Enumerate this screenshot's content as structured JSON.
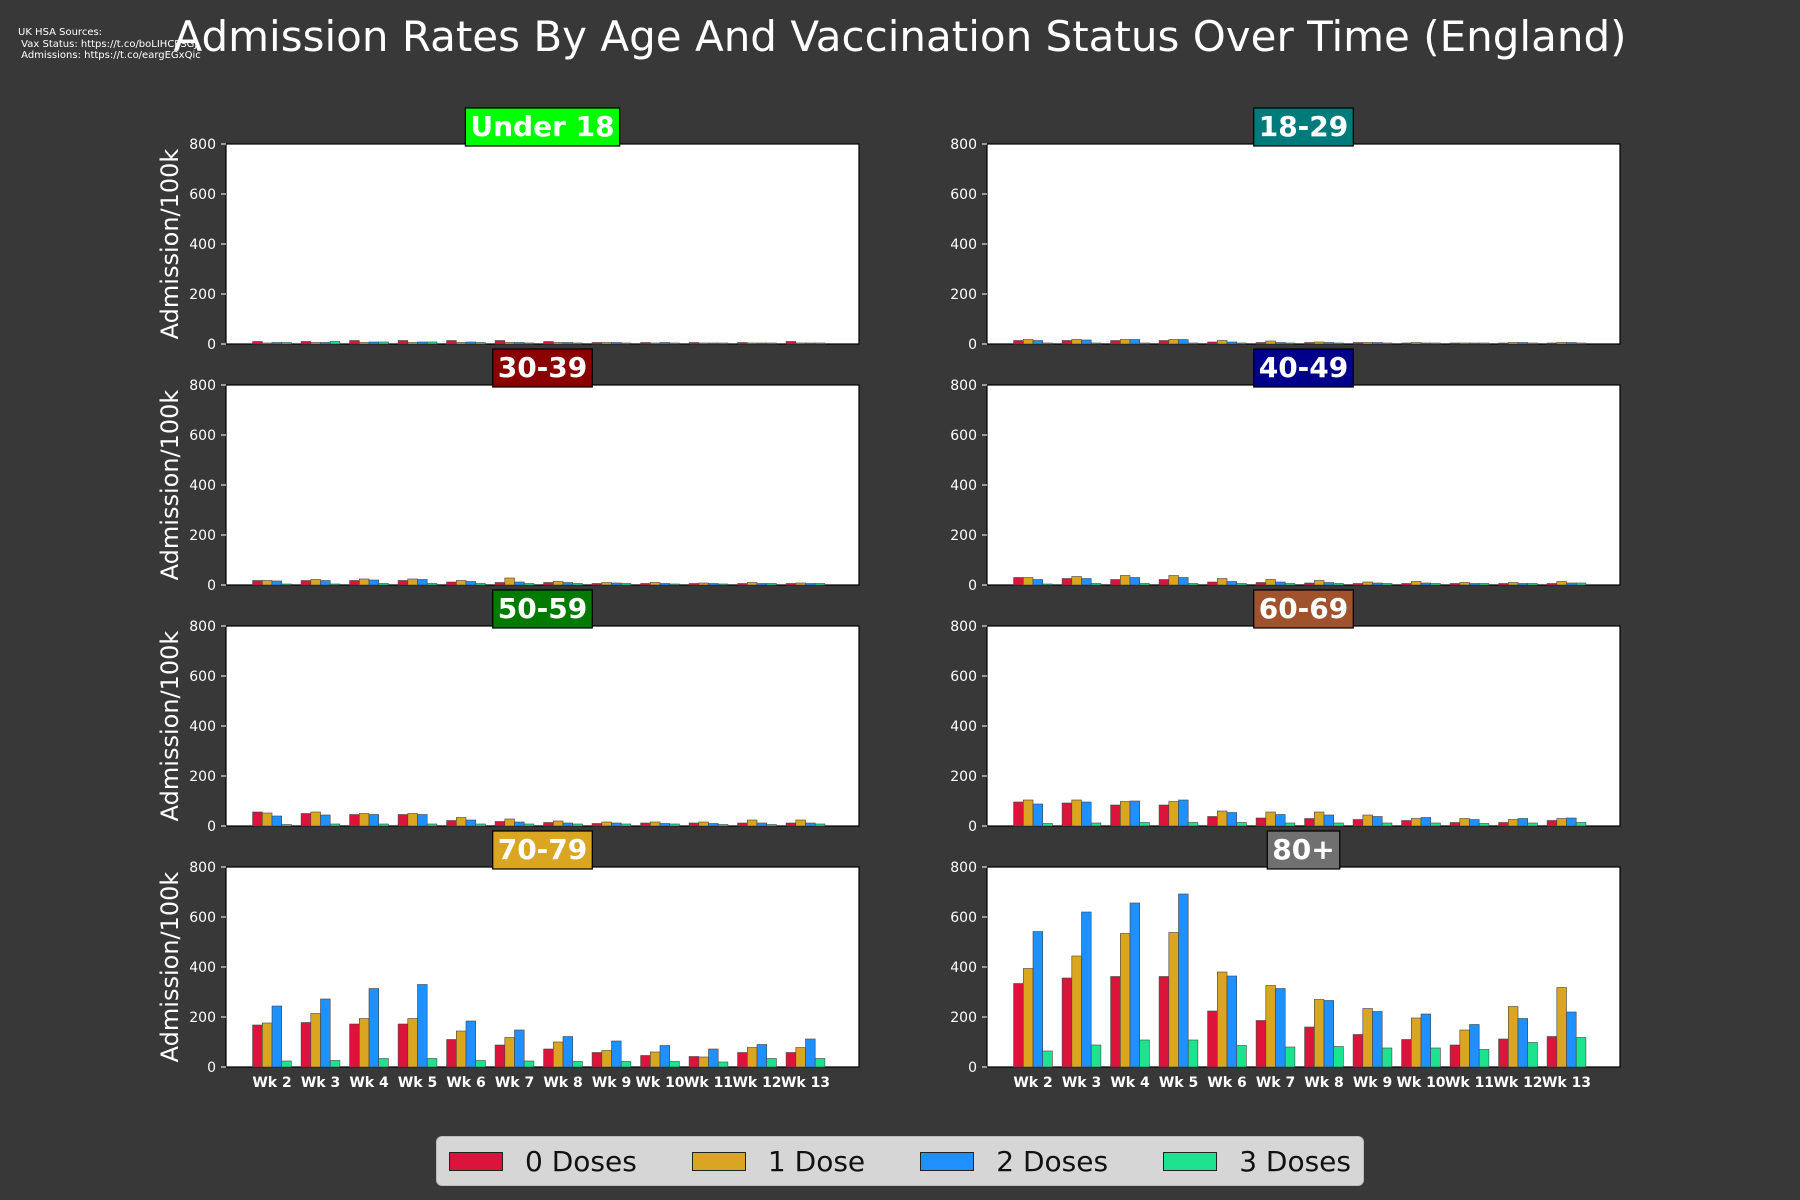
{
  "title": "Admission Rates By Age And Vaccination Status Over Time (England)",
  "sources": {
    "line1": "UK HSA Sources:",
    "line2": " Vax Status: https://t.co/boLIHCPSGJ",
    "line3": " Admissions: https://t.co/eargEGxQic"
  },
  "legend": [
    {
      "label": "0 Doses",
      "color": "#dc143c"
    },
    {
      "label": "1 Dose",
      "color": "#daa520"
    },
    {
      "label": "2 Doses",
      "color": "#1e90ff"
    },
    {
      "label": "3 Doses",
      "color": "#1de38f"
    }
  ],
  "chart_data": {
    "type": "bar",
    "ylabel": "Admission/100k",
    "ylim": [
      0,
      800
    ],
    "yticks": [
      0,
      200,
      400,
      600,
      800
    ],
    "categories": [
      "Wk 2",
      "Wk 3",
      "Wk 4",
      "Wk 5",
      "Wk 6",
      "Wk 7",
      "Wk 8",
      "Wk 9",
      "Wk 10",
      "Wk 11",
      "Wk 12",
      "Wk 13"
    ],
    "panels": [
      {
        "title": "Under 18",
        "title_bg": "#00ff00",
        "title_color": "#ffffff",
        "series": [
          {
            "name": "0 Doses",
            "values": [
              10,
              10,
              14,
              14,
              14,
              14,
              10,
              6,
              6,
              6,
              6,
              10
            ]
          },
          {
            "name": "1 Dose",
            "values": [
              4,
              6,
              6,
              6,
              6,
              6,
              6,
              6,
              4,
              4,
              4,
              4
            ]
          },
          {
            "name": "2 Doses",
            "values": [
              6,
              6,
              8,
              8,
              8,
              6,
              6,
              6,
              6,
              4,
              4,
              4
            ]
          },
          {
            "name": "3 Doses",
            "values": [
              6,
              10,
              8,
              8,
              6,
              4,
              4,
              4,
              4,
              4,
              4,
              4
            ]
          }
        ]
      },
      {
        "title": "18-29",
        "title_bg": "#007b7b",
        "title_color": "#ffffff",
        "series": [
          {
            "name": "0 Doses",
            "values": [
              14,
              14,
              14,
              14,
              8,
              6,
              6,
              6,
              4,
              4,
              4,
              4
            ]
          },
          {
            "name": "1 Dose",
            "values": [
              18,
              18,
              18,
              18,
              14,
              12,
              8,
              6,
              6,
              4,
              6,
              6
            ]
          },
          {
            "name": "2 Doses",
            "values": [
              14,
              16,
              18,
              18,
              8,
              6,
              6,
              6,
              4,
              4,
              6,
              6
            ]
          },
          {
            "name": "3 Doses",
            "values": [
              4,
              4,
              4,
              4,
              4,
              4,
              4,
              4,
              4,
              4,
              4,
              4
            ]
          }
        ]
      },
      {
        "title": "30-39",
        "title_bg": "#8b0000",
        "title_color": "#ffffff",
        "series": [
          {
            "name": "0 Doses",
            "values": [
              18,
              18,
              18,
              18,
              12,
              10,
              10,
              6,
              6,
              6,
              6,
              6
            ]
          },
          {
            "name": "1 Dose",
            "values": [
              18,
              22,
              24,
              24,
              18,
              28,
              14,
              10,
              10,
              8,
              10,
              8
            ]
          },
          {
            "name": "2 Doses",
            "values": [
              16,
              18,
              20,
              22,
              14,
              12,
              10,
              8,
              6,
              6,
              6,
              6
            ]
          },
          {
            "name": "3 Doses",
            "values": [
              4,
              4,
              6,
              6,
              6,
              6,
              6,
              6,
              4,
              4,
              6,
              6
            ]
          }
        ]
      },
      {
        "title": "40-49",
        "title_bg": "#00008b",
        "title_color": "#ffffff",
        "series": [
          {
            "name": "0 Doses",
            "values": [
              30,
              26,
              22,
              22,
              12,
              10,
              8,
              6,
              6,
              6,
              6,
              6
            ]
          },
          {
            "name": "1 Dose",
            "values": [
              30,
              34,
              38,
              38,
              26,
              22,
              18,
              12,
              14,
              10,
              10,
              14
            ]
          },
          {
            "name": "2 Doses",
            "values": [
              22,
              26,
              30,
              30,
              14,
              12,
              10,
              8,
              8,
              6,
              6,
              8
            ]
          },
          {
            "name": "3 Doses",
            "values": [
              4,
              6,
              6,
              6,
              6,
              6,
              6,
              6,
              6,
              6,
              6,
              8
            ]
          }
        ]
      },
      {
        "title": "50-59",
        "title_bg": "#007b00",
        "title_color": "#ffffff",
        "series": [
          {
            "name": "0 Doses",
            "values": [
              56,
              50,
              46,
              46,
              22,
              18,
              14,
              10,
              12,
              12,
              12,
              12
            ]
          },
          {
            "name": "1 Dose",
            "values": [
              52,
              56,
              50,
              50,
              34,
              28,
              20,
              16,
              16,
              16,
              24,
              24
            ]
          },
          {
            "name": "2 Doses",
            "values": [
              40,
              44,
              46,
              46,
              24,
              16,
              12,
              12,
              10,
              10,
              12,
              12
            ]
          },
          {
            "name": "3 Doses",
            "values": [
              6,
              8,
              8,
              8,
              8,
              8,
              8,
              8,
              8,
              6,
              6,
              8
            ]
          }
        ]
      },
      {
        "title": "60-69",
        "title_bg": "#a0522d",
        "title_color": "#ffffff",
        "series": [
          {
            "name": "0 Doses",
            "values": [
              96,
              92,
              84,
              84,
              38,
              32,
              30,
              26,
              22,
              14,
              14,
              22
            ]
          },
          {
            "name": "1 Dose",
            "values": [
              104,
              104,
              98,
              98,
              60,
              56,
              56,
              44,
              30,
              30,
              26,
              30
            ]
          },
          {
            "name": "2 Doses",
            "values": [
              88,
              96,
              100,
              104,
              54,
              46,
              44,
              38,
              34,
              26,
              30,
              32
            ]
          },
          {
            "name": "3 Doses",
            "values": [
              10,
              12,
              14,
              14,
              14,
              12,
              12,
              12,
              12,
              10,
              12,
              14
            ]
          }
        ]
      },
      {
        "title": "70-79",
        "title_bg": "#daa520",
        "title_color": "#ffffff",
        "series": [
          {
            "name": "0 Doses",
            "values": [
              168,
              178,
              172,
              172,
              110,
              88,
              72,
              58,
              46,
              42,
              58,
              58
            ]
          },
          {
            "name": "1 Dose",
            "values": [
              176,
              214,
              194,
              194,
              144,
              118,
              100,
              66,
              60,
              40,
              78,
              78
            ]
          },
          {
            "name": "2 Doses",
            "values": [
              244,
              272,
              314,
              330,
              184,
              148,
              122,
              104,
              86,
              72,
              90,
              112
            ]
          },
          {
            "name": "3 Doses",
            "values": [
              24,
              26,
              34,
              34,
              26,
              24,
              22,
              22,
              22,
              20,
              34,
              34
            ]
          }
        ]
      },
      {
        "title": "80+",
        "title_bg": "#707070",
        "title_color": "#ffffff",
        "series": [
          {
            "name": "0 Doses",
            "values": [
              334,
              356,
              362,
              362,
              224,
              186,
              160,
              130,
              110,
              88,
              112,
              122
            ]
          },
          {
            "name": "1 Dose",
            "values": [
              394,
              444,
              534,
              538,
              380,
              326,
              270,
              234,
              196,
              148,
              242,
              318
            ]
          },
          {
            "name": "2 Doses",
            "values": [
              542,
              620,
              656,
              692,
              364,
              314,
              266,
              222,
              212,
              170,
              194,
              220
            ]
          },
          {
            "name": "3 Doses",
            "values": [
              64,
              88,
              108,
              108,
              86,
              80,
              82,
              76,
              76,
              70,
              98,
              118
            ]
          }
        ]
      }
    ]
  }
}
